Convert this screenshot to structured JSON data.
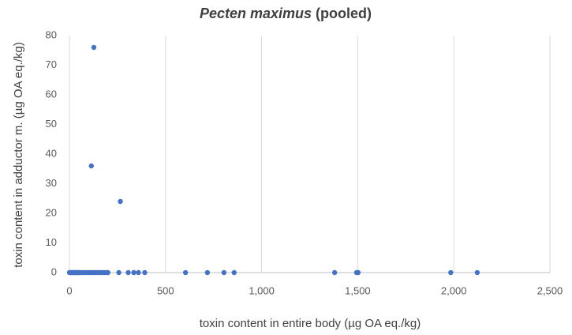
{
  "chart_data": {
    "type": "scatter",
    "title_parts": [
      "Pecten maximus",
      "(pooled)"
    ],
    "x_label": "toxin content in entire body (µg OA eq./kg)",
    "y_label": "toxin content in adductor m. (µg OA eq./kg)",
    "color": "#4472c4",
    "grid": "x",
    "xlim": [
      0,
      2500
    ],
    "xticks": [
      0,
      500,
      {
        "value": 1000,
        "label": "1,000"
      },
      {
        "value": 1500,
        "label": "1,500"
      },
      {
        "value": 2000,
        "label": "2,000"
      },
      {
        "value": 2500,
        "label": "2,500"
      }
    ],
    "ylim": [
      0,
      80
    ],
    "yticks": [
      0,
      10,
      20,
      30,
      40,
      50,
      60,
      70,
      80
    ],
    "x": [
      127,
      114,
      265,
      0,
      5,
      10,
      15,
      20,
      25,
      30,
      35,
      40,
      45,
      50,
      55,
      60,
      70,
      80,
      90,
      100,
      110,
      120,
      130,
      140,
      150,
      160,
      170,
      180,
      190,
      200,
      257,
      306,
      335,
      359,
      392,
      604,
      718,
      804,
      857,
      1380,
      1494,
      1502,
      1984,
      2122
    ],
    "values": [
      76,
      36,
      24,
      0,
      0,
      0,
      0,
      0,
      0,
      0,
      0,
      0,
      0,
      0,
      0,
      0,
      0,
      0,
      0,
      0,
      0,
      0,
      0,
      0,
      0,
      0,
      0,
      0,
      0,
      0,
      0,
      0,
      0,
      0,
      0,
      0,
      0,
      0,
      0,
      0,
      0,
      0,
      0,
      0
    ]
  }
}
